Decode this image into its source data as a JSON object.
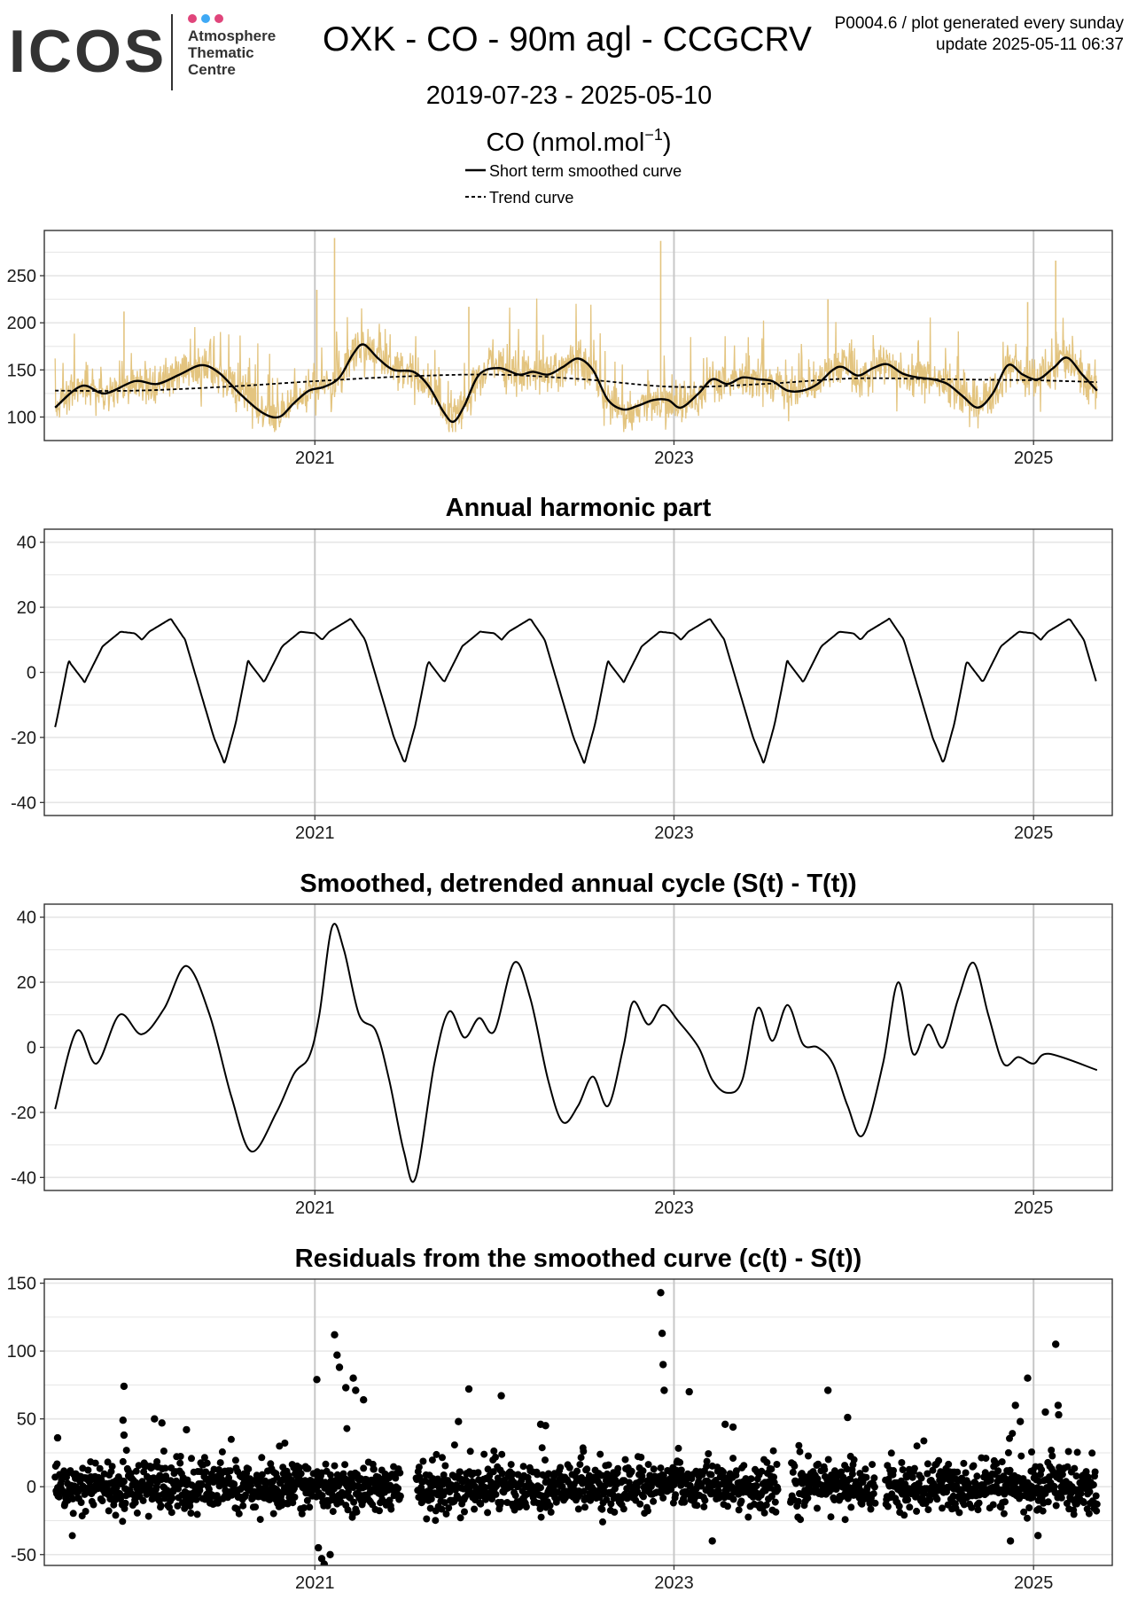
{
  "header": {
    "logo": {
      "wordmark": "ICOS",
      "line1": "Atmosphere",
      "line2": "Thematic",
      "line3": "Centre",
      "dot_colors": [
        "#e0457b",
        "#3fa9f5",
        "#e0457b"
      ]
    },
    "title": "OXK - CO - 90m agl - CCGCRV",
    "subtitle": "2019-07-23 - 2025-05-10",
    "meta_line1": "P0004.6 / plot generated every sunday",
    "meta_line2": "update  2025-05-11 06:37",
    "units_main": "CO (nmol.mol",
    "units_sup": "−1",
    "units_close": ")",
    "legend": [
      {
        "label": "Short term smoothed curve",
        "style": "solid"
      },
      {
        "label": "Trend curve",
        "style": "dashed"
      }
    ]
  },
  "colors": {
    "observations": "#e3c47f",
    "curve": "#000000",
    "grid": "#e6e6e6",
    "major_grid": "#c8c8c8"
  },
  "chart_data": [
    {
      "type": "line",
      "title": "",
      "x_range": [
        "2019-07-01",
        "2025-06-10"
      ],
      "x_ticks": [
        "2021",
        "2023",
        "2025"
      ],
      "ylim": [
        75,
        298
      ],
      "y_ticks": [
        100,
        150,
        200,
        250
      ],
      "series": [
        {
          "name": "Short term smoothed curve",
          "style": "solid",
          "points": [
            [
              "2019-07-23",
              110
            ],
            [
              "2019-09-15",
              133
            ],
            [
              "2019-11-01",
              125
            ],
            [
              "2020-01-01",
              138
            ],
            [
              "2020-02-15",
              135
            ],
            [
              "2020-04-01",
              145
            ],
            [
              "2020-05-15",
              155
            ],
            [
              "2020-06-20",
              147
            ],
            [
              "2020-08-01",
              125
            ],
            [
              "2020-09-15",
              105
            ],
            [
              "2020-10-20",
              100
            ],
            [
              "2020-11-20",
              115
            ],
            [
              "2020-12-20",
              128
            ],
            [
              "2021-01-20",
              132
            ],
            [
              "2021-02-20",
              142
            ],
            [
              "2021-03-20",
              167
            ],
            [
              "2021-04-10",
              177
            ],
            [
              "2021-05-10",
              162
            ],
            [
              "2021-06-10",
              150
            ],
            [
              "2021-07-20",
              148
            ],
            [
              "2021-08-20",
              133
            ],
            [
              "2021-09-20",
              105
            ],
            [
              "2021-10-10",
              95
            ],
            [
              "2021-11-01",
              112
            ],
            [
              "2021-12-01",
              145
            ],
            [
              "2022-01-10",
              152
            ],
            [
              "2022-02-20",
              145
            ],
            [
              "2022-03-20",
              148
            ],
            [
              "2022-04-20",
              145
            ],
            [
              "2022-05-20",
              153
            ],
            [
              "2022-06-20",
              162
            ],
            [
              "2022-07-20",
              150
            ],
            [
              "2022-08-20",
              118
            ],
            [
              "2022-09-20",
              108
            ],
            [
              "2022-10-20",
              112
            ],
            [
              "2022-11-20",
              118
            ],
            [
              "2022-12-20",
              118
            ],
            [
              "2023-01-15",
              110
            ],
            [
              "2023-02-20",
              125
            ],
            [
              "2023-03-20",
              140
            ],
            [
              "2023-04-20",
              135
            ],
            [
              "2023-05-20",
              142
            ],
            [
              "2023-06-20",
              140
            ],
            [
              "2023-07-20",
              138
            ],
            [
              "2023-08-20",
              128
            ],
            [
              "2023-09-20",
              128
            ],
            [
              "2023-10-20",
              135
            ],
            [
              "2023-11-20",
              150
            ],
            [
              "2023-12-10",
              153
            ],
            [
              "2024-01-10",
              144
            ],
            [
              "2024-02-10",
              152
            ],
            [
              "2024-03-10",
              156
            ],
            [
              "2024-04-10",
              146
            ],
            [
              "2024-05-10",
              142
            ],
            [
              "2024-06-10",
              140
            ],
            [
              "2024-07-10",
              135
            ],
            [
              "2024-08-10",
              122
            ],
            [
              "2024-09-10",
              110
            ],
            [
              "2024-10-10",
              125
            ],
            [
              "2024-11-10",
              155
            ],
            [
              "2024-12-10",
              145
            ],
            [
              "2025-01-10",
              140
            ],
            [
              "2025-02-10",
              152
            ],
            [
              "2025-03-10",
              163
            ],
            [
              "2025-04-10",
              145
            ],
            [
              "2025-05-10",
              128
            ]
          ]
        },
        {
          "name": "Trend curve",
          "style": "dashed",
          "points": [
            [
              "2019-07-23",
              128
            ],
            [
              "2020-01-01",
              128
            ],
            [
              "2020-07-01",
              132
            ],
            [
              "2021-01-01",
              138
            ],
            [
              "2021-07-01",
              143
            ],
            [
              "2022-01-01",
              145
            ],
            [
              "2022-07-01",
              140
            ],
            [
              "2023-01-01",
              132
            ],
            [
              "2023-07-01",
              135
            ],
            [
              "2024-01-01",
              141
            ],
            [
              "2024-07-01",
              140
            ],
            [
              "2025-01-01",
              139
            ],
            [
              "2025-05-10",
              137
            ]
          ]
        }
      ]
    },
    {
      "type": "line",
      "title": "Annual harmonic part",
      "x_range": [
        "2019-07-01",
        "2025-06-10"
      ],
      "x_ticks": [
        "2021",
        "2023",
        "2025"
      ],
      "ylim": [
        -44,
        44
      ],
      "y_ticks": [
        -40,
        -20,
        0,
        20,
        40
      ],
      "annual_cycle": [
        [
          0.0,
          12.0
        ],
        [
          0.04,
          10.0
        ],
        [
          0.08,
          12.5
        ],
        [
          0.2,
          16.5
        ],
        [
          0.28,
          10.0
        ],
        [
          0.36,
          -5.0
        ],
        [
          0.44,
          -20.0
        ],
        [
          0.5,
          -28.0
        ],
        [
          0.56,
          -16.0
        ],
        [
          0.63,
          3.5
        ],
        [
          0.72,
          -3.0
        ],
        [
          0.82,
          8.0
        ],
        [
          0.92,
          12.5
        ],
        [
          1.0,
          12.0
        ]
      ],
      "series": [
        {
          "name": "Annual harmonic part",
          "start": "2019-07-23",
          "end": "2025-05-10"
        }
      ]
    },
    {
      "type": "line",
      "title": "Smoothed, detrended annual cycle (S(t) - T(t))",
      "x_range": [
        "2019-07-01",
        "2025-06-10"
      ],
      "x_ticks": [
        "2021",
        "2023",
        "2025"
      ],
      "ylim": [
        -44,
        44
      ],
      "y_ticks": [
        -40,
        -20,
        0,
        20,
        40
      ],
      "series": [
        {
          "name": "S(t) - T(t)",
          "points": [
            [
              "2019-07-23",
              -19
            ],
            [
              "2019-09-05",
              5
            ],
            [
              "2019-10-15",
              -5
            ],
            [
              "2019-12-01",
              10
            ],
            [
              "2020-01-15",
              4
            ],
            [
              "2020-03-01",
              12
            ],
            [
              "2020-04-15",
              25
            ],
            [
              "2020-06-01",
              10
            ],
            [
              "2020-07-15",
              -15
            ],
            [
              "2020-08-25",
              -32
            ],
            [
              "2020-10-15",
              -20
            ],
            [
              "2020-11-20",
              -8
            ],
            [
              "2020-12-20",
              -3
            ],
            [
              "2021-01-10",
              10
            ],
            [
              "2021-02-05",
              37
            ],
            [
              "2021-03-01",
              30
            ],
            [
              "2021-04-01",
              10
            ],
            [
              "2021-05-05",
              5
            ],
            [
              "2021-06-01",
              -10
            ],
            [
              "2021-07-01",
              -32
            ],
            [
              "2021-07-25",
              -40
            ],
            [
              "2021-09-01",
              -5
            ],
            [
              "2021-10-01",
              11
            ],
            [
              "2021-11-01",
              3
            ],
            [
              "2021-12-01",
              9
            ],
            [
              "2022-01-01",
              5
            ],
            [
              "2022-02-10",
              26
            ],
            [
              "2022-03-15",
              15
            ],
            [
              "2022-04-20",
              -10
            ],
            [
              "2022-05-20",
              -23
            ],
            [
              "2022-06-20",
              -18
            ],
            [
              "2022-07-20",
              -9
            ],
            [
              "2022-08-20",
              -18
            ],
            [
              "2022-09-20",
              0
            ],
            [
              "2022-10-10",
              14
            ],
            [
              "2022-11-10",
              7
            ],
            [
              "2022-12-10",
              13
            ],
            [
              "2023-01-10",
              8
            ],
            [
              "2023-02-20",
              0
            ],
            [
              "2023-03-20",
              -10
            ],
            [
              "2023-04-20",
              -14
            ],
            [
              "2023-05-20",
              -10
            ],
            [
              "2023-06-20",
              12
            ],
            [
              "2023-07-20",
              2
            ],
            [
              "2023-08-20",
              13
            ],
            [
              "2023-09-20",
              1
            ],
            [
              "2023-10-20",
              0
            ],
            [
              "2023-11-20",
              -5
            ],
            [
              "2023-12-20",
              -18
            ],
            [
              "2024-01-20",
              -27
            ],
            [
              "2024-03-01",
              -5
            ],
            [
              "2024-04-01",
              20
            ],
            [
              "2024-05-01",
              -2
            ],
            [
              "2024-06-01",
              7
            ],
            [
              "2024-07-01",
              0
            ],
            [
              "2024-08-01",
              15
            ],
            [
              "2024-09-01",
              26
            ],
            [
              "2024-10-01",
              10
            ],
            [
              "2024-11-01",
              -5
            ],
            [
              "2024-12-01",
              -3
            ],
            [
              "2025-01-01",
              -5
            ],
            [
              "2025-02-01",
              -2
            ],
            [
              "2025-05-10",
              -7
            ]
          ]
        }
      ]
    },
    {
      "type": "scatter",
      "title": "Residuals from the smoothed curve (c(t) - S(t))",
      "x_range": [
        "2019-07-01",
        "2025-06-10"
      ],
      "x_ticks": [
        "2021",
        "2023",
        "2025"
      ],
      "ylim": [
        -58,
        153
      ],
      "y_ticks": [
        -50,
        0,
        50,
        100,
        150
      ],
      "series": [
        {
          "name": "c(t) - S(t)",
          "start": "2019-07-23",
          "end": "2025-05-10",
          "outliers": [
            [
              "2019-07-28",
              36
            ],
            [
              "2019-12-10",
              74
            ],
            [
              "2019-12-08",
              49
            ],
            [
              "2019-12-10",
              38
            ],
            [
              "2020-02-10",
              50
            ],
            [
              "2020-02-25",
              47
            ],
            [
              "2020-04-15",
              42
            ],
            [
              "2021-01-05",
              79
            ],
            [
              "2021-02-10",
              112
            ],
            [
              "2021-02-15",
              97
            ],
            [
              "2021-02-20",
              88
            ],
            [
              "2021-03-05",
              73
            ],
            [
              "2021-03-20",
              80
            ],
            [
              "2021-03-25",
              71
            ],
            [
              "2021-04-10",
              64
            ],
            [
              "2021-01-08",
              -45
            ],
            [
              "2021-01-15",
              -53
            ],
            [
              "2021-01-20",
              -57
            ],
            [
              "2021-02-01",
              -50
            ],
            [
              "2021-11-10",
              72
            ],
            [
              "2021-10-20",
              48
            ],
            [
              "2022-01-15",
              67
            ],
            [
              "2022-04-05",
              46
            ],
            [
              "2022-04-15",
              45
            ],
            [
              "2022-12-05",
              143
            ],
            [
              "2022-12-08",
              113
            ],
            [
              "2022-12-10",
              90
            ],
            [
              "2022-12-12",
              71
            ],
            [
              "2023-02-01",
              70
            ],
            [
              "2023-04-15",
              46
            ],
            [
              "2023-05-01",
              44
            ],
            [
              "2023-03-20",
              -40
            ],
            [
              "2023-11-10",
              71
            ],
            [
              "2023-12-20",
              51
            ],
            [
              "2024-11-25",
              60
            ],
            [
              "2024-12-20",
              80
            ],
            [
              "2024-12-05",
              48
            ],
            [
              "2025-01-25",
              55
            ],
            [
              "2025-02-15",
              105
            ],
            [
              "2025-02-20",
              60
            ],
            [
              "2025-02-21",
              53
            ],
            [
              "2024-11-15",
              -40
            ],
            [
              "2025-01-10",
              -36
            ]
          ]
        }
      ]
    }
  ]
}
